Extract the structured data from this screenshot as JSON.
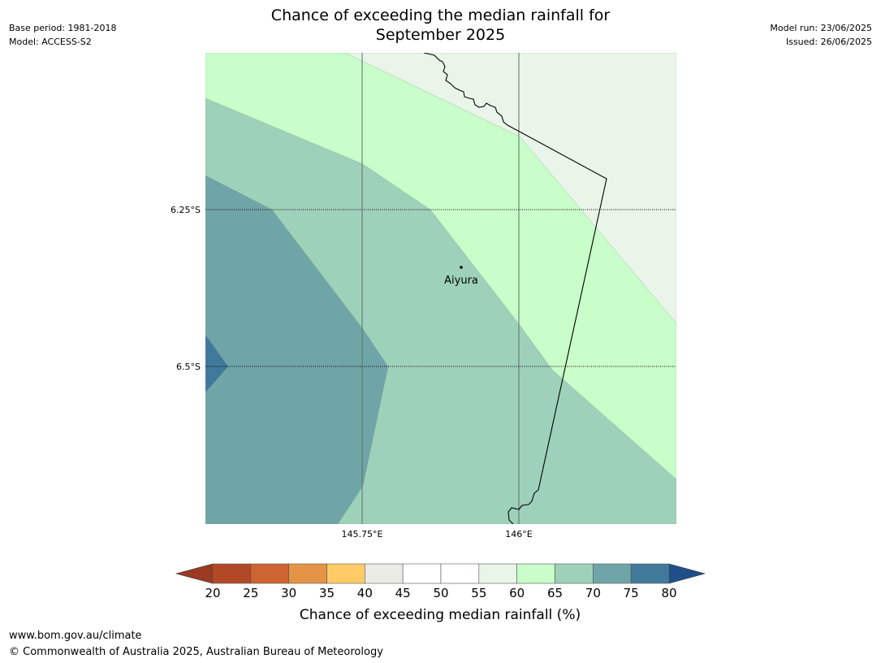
{
  "header": {
    "base_period": "Base period: 1981-2018",
    "model": "Model: ACCESS-S2",
    "title_line1": "Chance of exceeding the median rainfall for",
    "title_line2": "September 2025",
    "model_run": "Model run: 23/06/2025",
    "issued": "Issued: 26/06/2025"
  },
  "map": {
    "lat_labels": [
      "6.25°S",
      "6.5°S"
    ],
    "lon_labels": [
      "145.75°E",
      "146°E"
    ],
    "city": {
      "name": "Aiyura"
    },
    "colors": {
      "c55_60": "#e9f5e9",
      "c60_65": "#c9fdc9",
      "c65_70": "#9ed1ba",
      "c70_75": "#70a5a8",
      "c75_80": "#41799b"
    }
  },
  "colorbar": {
    "caption": "Chance of exceeding median rainfall (%)",
    "ticks": [
      "20",
      "25",
      "30",
      "35",
      "40",
      "45",
      "50",
      "55",
      "60",
      "65",
      "70",
      "75",
      "80"
    ],
    "under_color": "#9a3a22",
    "over_color": "#1e4f89",
    "colors": [
      "#b34826",
      "#cd6431",
      "#e39445",
      "#fecb66",
      "#ebebe6",
      "#ffffff",
      "#ffffff",
      "#e9f5e9",
      "#c9fdc9",
      "#9ed1ba",
      "#70a5a8",
      "#41799b"
    ]
  },
  "footer": {
    "url": "www.bom.gov.au/climate",
    "copyright": "© Commonwealth of Australia 2025, Australian Bureau of Meteorology"
  }
}
